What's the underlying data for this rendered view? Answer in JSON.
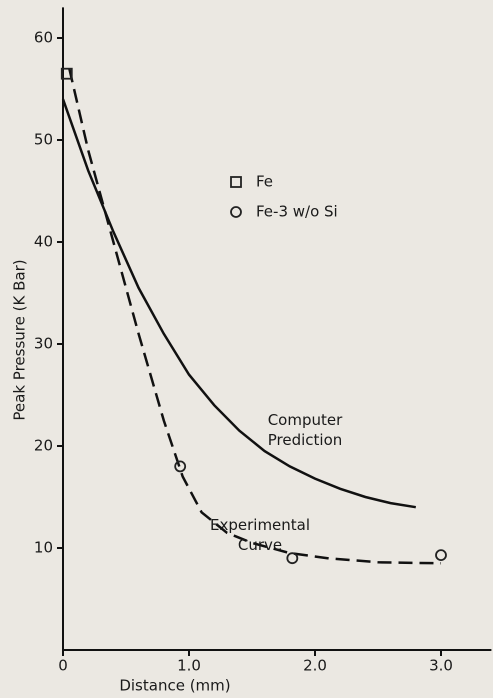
{
  "chart_data": {
    "type": "line",
    "xlabel": "Distance (mm)",
    "ylabel": "Peak Pressure (K Bar)",
    "xlim": [
      0,
      3.4
    ],
    "ylim": [
      0,
      63
    ],
    "xticks": [
      0,
      {
        "value": 1,
        "label": "1.0"
      },
      {
        "value": 2,
        "label": "2.0"
      },
      {
        "value": 3,
        "label": "3.0"
      }
    ],
    "yticks": [
      10,
      20,
      30,
      40,
      50,
      60
    ],
    "legend": "upper center",
    "series": [
      {
        "name": "Fe",
        "marker": "square",
        "color": "#222222",
        "x": [
          0.03
        ],
        "values": [
          56.5
        ]
      },
      {
        "name": "Fe-3 w/o Si",
        "marker": "circle",
        "color": "#222222",
        "x": [
          0.93,
          1.82,
          3.0
        ],
        "values": [
          18,
          9,
          9.3
        ]
      }
    ],
    "curves": [
      {
        "name": "Computer Prediction",
        "style": "solid",
        "color": "#111111",
        "x": [
          0,
          0.2,
          0.4,
          0.6,
          0.8,
          1.0,
          1.2,
          1.4,
          1.6,
          1.8,
          2.0,
          2.2,
          2.4,
          2.6,
          2.8
        ],
        "values": [
          54,
          47,
          41,
          35.5,
          31,
          27,
          24,
          21.5,
          19.5,
          18,
          16.8,
          15.8,
          15,
          14.4,
          14
        ]
      },
      {
        "name": "Experimental Curve",
        "style": "dashed",
        "color": "#111111",
        "x": [
          0.05,
          0.2,
          0.4,
          0.6,
          0.8,
          0.95,
          1.1,
          1.3,
          1.5,
          1.8,
          2.1,
          2.5,
          3.0
        ],
        "values": [
          57,
          49,
          40,
          31,
          22.5,
          17,
          13.5,
          11.5,
          10.5,
          9.5,
          9,
          8.6,
          8.5
        ]
      }
    ]
  }
}
